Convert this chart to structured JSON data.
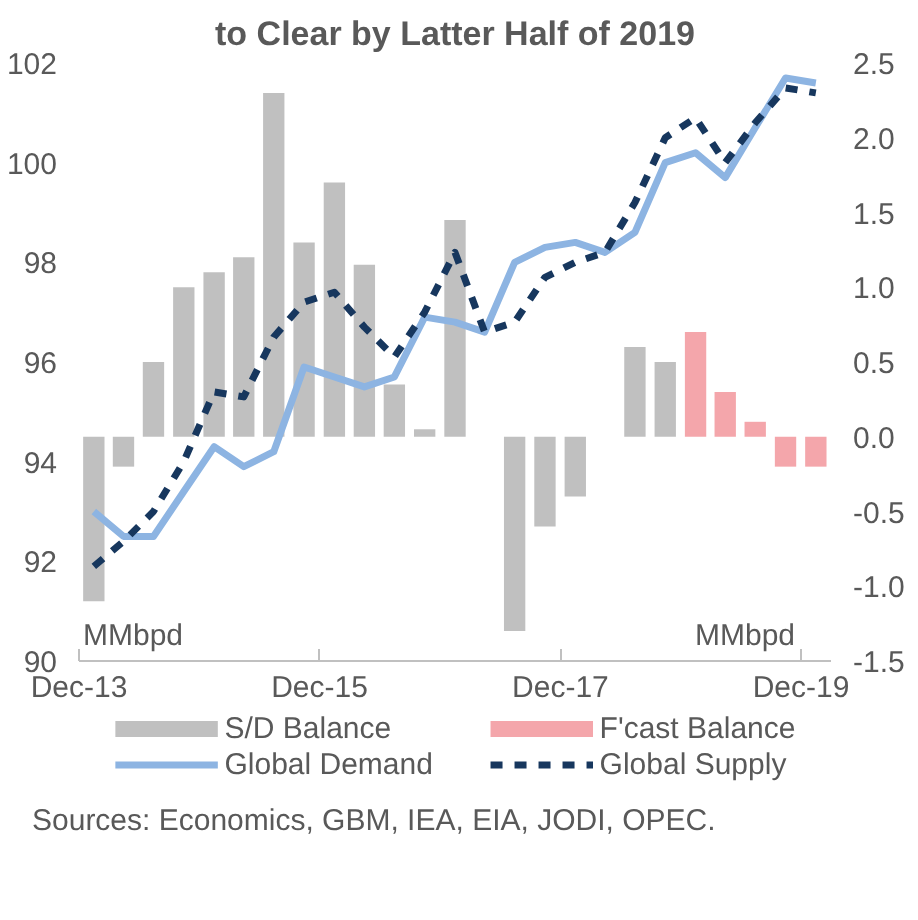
{
  "chart_data": {
    "type": "bar",
    "title": "to Clear by Latter Half of 2019",
    "x": [
      "2014-01-15",
      "2014-04-15",
      "2014-07-15",
      "2014-10-15",
      "2015-01-15",
      "2015-04-15",
      "2015-07-15",
      "2015-10-15",
      "2016-01-15",
      "2016-04-15",
      "2016-07-15",
      "2016-10-15",
      "2017-01-15",
      "2017-04-15",
      "2017-07-15",
      "2017-10-15",
      "2018-01-15",
      "2018-04-15",
      "2018-07-15",
      "2018-10-15",
      "2019-01-15",
      "2019-04-15",
      "2019-07-15",
      "2019-10-15",
      "2020-01-15"
    ],
    "series": [
      {
        "name": "S/D Balance",
        "axis": "y2",
        "color": "#c0c0c0",
        "values": [
          -1.1,
          -0.2,
          0.5,
          1.0,
          1.1,
          1.2,
          2.3,
          1.3,
          1.7,
          1.15,
          0.35,
          0.05,
          1.45,
          0.0,
          -1.3,
          -0.6,
          -0.4,
          null,
          0.6,
          0.5,
          null,
          null,
          null,
          null,
          null
        ]
      },
      {
        "name": "F'cast Balance",
        "axis": "y2",
        "color": "#f4a6ab",
        "values": [
          null,
          null,
          null,
          null,
          null,
          null,
          null,
          null,
          null,
          null,
          null,
          null,
          null,
          null,
          null,
          null,
          null,
          null,
          null,
          null,
          0.7,
          0.3,
          0.1,
          -0.2,
          -0.2
        ]
      },
      {
        "name": "Global Demand",
        "type": "line",
        "color": "#8db4e2",
        "line_style": "solid",
        "values": [
          93.0,
          92.5,
          92.5,
          93.4,
          94.3,
          93.9,
          94.2,
          95.9,
          95.7,
          95.5,
          95.7,
          96.9,
          96.8,
          96.6,
          98.0,
          98.3,
          98.4,
          98.2,
          98.6,
          100.0,
          100.2,
          99.7,
          100.7,
          101.7,
          101.6
        ]
      },
      {
        "name": "Global Supply",
        "type": "line",
        "color": "#17375e",
        "line_style": "dashed",
        "values": [
          91.9,
          92.4,
          93.0,
          94.0,
          95.4,
          95.3,
          96.5,
          97.2,
          97.4,
          96.7,
          96.1,
          97.0,
          98.2,
          96.6,
          96.8,
          97.7,
          98.0,
          98.2,
          99.2,
          100.5,
          100.9,
          100.0,
          100.8,
          101.5,
          101.4
        ]
      }
    ],
    "xlim": [
      "2013-12-01",
      "2020-03-01"
    ],
    "xticks": [
      {
        "value": "2013-12-01",
        "label": "Dec-13"
      },
      {
        "value": "2015-12-01",
        "label": "Dec-15"
      },
      {
        "value": "2017-12-01",
        "label": "Dec-17"
      },
      {
        "value": "2019-12-01",
        "label": "Dec-19"
      }
    ],
    "ylim": [
      90,
      102
    ],
    "yticks": [
      90,
      92,
      94,
      96,
      98,
      100,
      102
    ],
    "y2lim": [
      -1.5,
      2.5
    ],
    "y2ticks": [
      {
        "value": -1.5,
        "label": "-1.5"
      },
      {
        "value": -1.0,
        "label": "-1.0"
      },
      -0.5,
      {
        "value": 0,
        "label": "0.0"
      },
      0.5,
      {
        "value": 1.0,
        "label": "1.0"
      },
      1.5,
      {
        "value": 2.0,
        "label": "2.0"
      },
      2.5
    ],
    "annotations": [
      "MMbpd",
      "MMbpd",
      "Sources: Economics, GBM, IEA, EIA, JODI, OPEC."
    ],
    "legend": "bottom",
    "grid": false
  }
}
